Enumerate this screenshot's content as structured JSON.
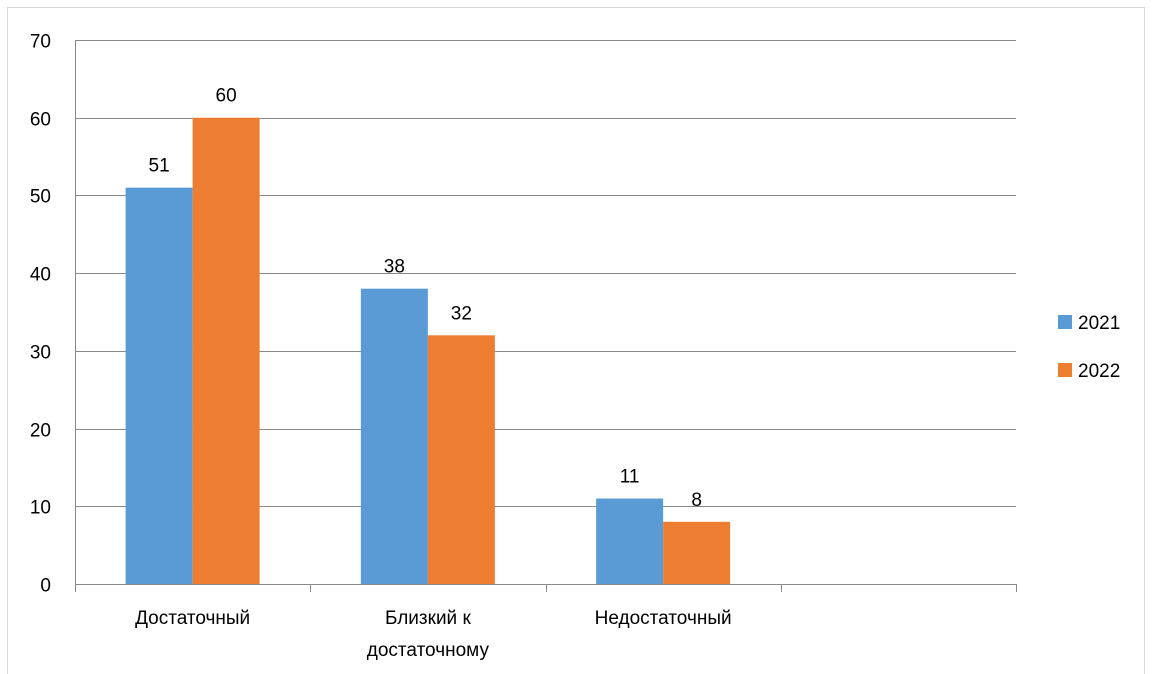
{
  "chart_data": {
    "type": "bar",
    "categories": [
      "Достаточный",
      "Близкий к достаточному",
      "Недостаточный",
      ""
    ],
    "category_lines": [
      [
        "Достаточный"
      ],
      [
        "Близкий к",
        "достаточному"
      ],
      [
        "Недостаточный"
      ],
      []
    ],
    "series": [
      {
        "name": "2021",
        "color": "#5B9BD5",
        "values": [
          51,
          38,
          11,
          null
        ]
      },
      {
        "name": "2022",
        "color": "#ED7D31",
        "values": [
          60,
          32,
          8,
          null
        ]
      }
    ],
    "ylim": [
      0,
      70
    ],
    "yticks": [
      0,
      10,
      20,
      30,
      40,
      50,
      60,
      70
    ],
    "grid": true,
    "legend_position": "right",
    "data_labels": true,
    "title": "",
    "xlabel": "",
    "ylabel": ""
  }
}
